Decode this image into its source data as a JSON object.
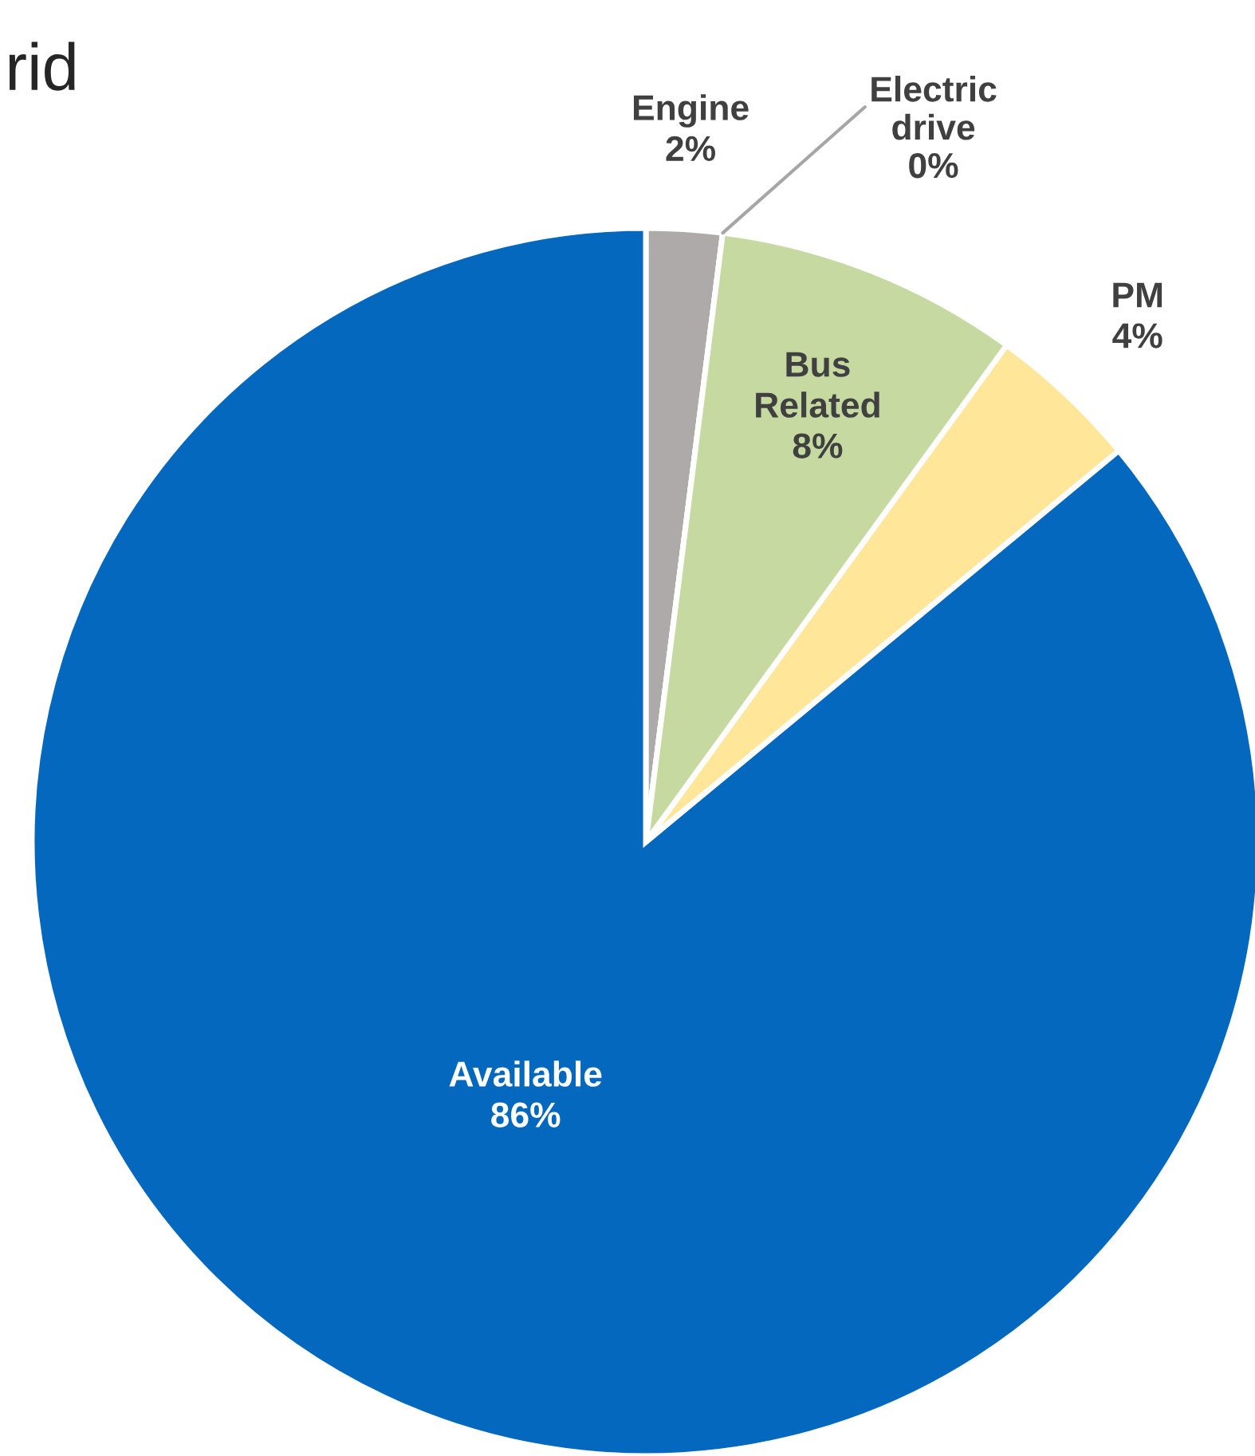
{
  "chart_data": {
    "type": "pie",
    "title": "rid",
    "categories": [
      "Engine",
      "Electric drive",
      "Bus Related",
      "PM",
      "Available"
    ],
    "values": [
      2,
      0,
      8,
      4,
      86
    ],
    "value_labels": [
      "2%",
      "0%",
      "8%",
      "4%",
      "86%"
    ],
    "colors": [
      "#aeaaaa",
      "#8faadc",
      "#c5d9a0",
      "#ffe699",
      "#0468bf"
    ]
  }
}
